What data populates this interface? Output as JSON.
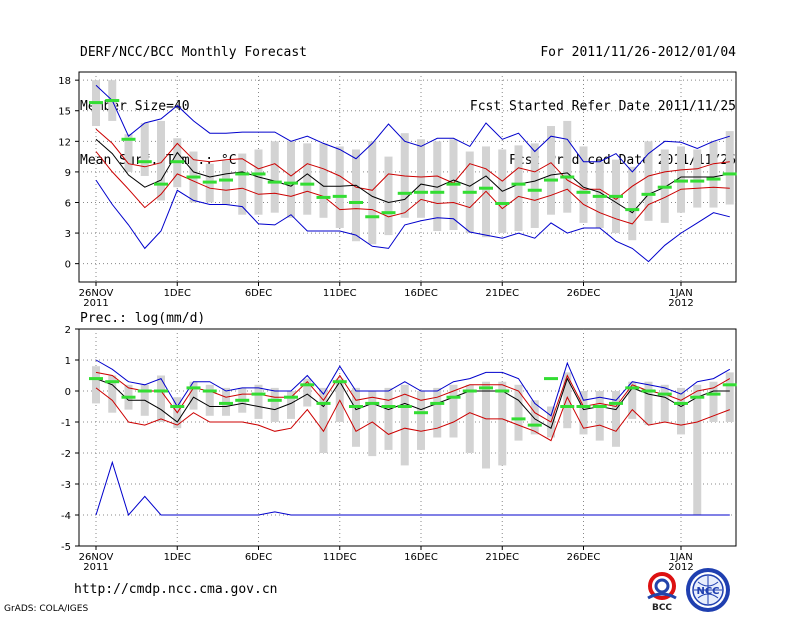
{
  "header": {
    "left": [
      "DERF/NCC/BCC Monthly Forecast",
      "Member Size=40",
      "Mean Surf. Temp.: °C"
    ],
    "right": [
      "For 2011/11/26-2012/01/04",
      "Fcst Started Refer Date 2011/11/25",
      "Fcst Produced Date 2011/11/26"
    ]
  },
  "panel2_title": "Prec.: log(mm/d)",
  "footer": {
    "url": "http://cmdp.ncc.cma.gov.cn",
    "credit": "GrADS: COLA/IGES"
  },
  "logos": [
    {
      "name": "bcc-logo",
      "text": "BCC"
    },
    {
      "name": "ncc-logo",
      "text": "NCC"
    }
  ],
  "colors": {
    "envelope": "#0000cc",
    "spread": "#cc0000",
    "mean": "#000000",
    "obs": "#33dd33",
    "bar": "#d3d3d3"
  },
  "x_ticks": [
    {
      "day": 0,
      "label": "26NOV",
      "sub": "2011"
    },
    {
      "day": 5,
      "label": "1DEC",
      "sub": ""
    },
    {
      "day": 10,
      "label": "6DEC",
      "sub": ""
    },
    {
      "day": 15,
      "label": "11DEC",
      "sub": ""
    },
    {
      "day": 20,
      "label": "16DEC",
      "sub": ""
    },
    {
      "day": 25,
      "label": "21DEC",
      "sub": ""
    },
    {
      "day": 30,
      "label": "26DEC",
      "sub": ""
    },
    {
      "day": 36,
      "label": "1JAN",
      "sub": "2012"
    }
  ],
  "chart_data": [
    {
      "type": "line",
      "title": "Mean Surf. Temp.: °C",
      "x_days": [
        0,
        1,
        2,
        3,
        4,
        5,
        6,
        7,
        8,
        9,
        10,
        11,
        12,
        13,
        14,
        15,
        16,
        17,
        18,
        19,
        20,
        21,
        22,
        23,
        24,
        25,
        26,
        27,
        28,
        29,
        30,
        31,
        32,
        33,
        34,
        35,
        36,
        37,
        38,
        39
      ],
      "ylim": [
        -1.8,
        18.8
      ],
      "yticks": [
        0,
        3,
        6,
        9,
        12,
        15,
        18
      ],
      "series": [
        {
          "name": "max",
          "color": "#0000cc",
          "values": [
            17.5,
            16.0,
            12.5,
            13.8,
            14.2,
            15.5,
            14.0,
            12.8,
            12.8,
            12.9,
            12.9,
            12.9,
            12.0,
            12.5,
            11.8,
            11.2,
            10.3,
            11.8,
            13.7,
            12.0,
            11.5,
            12.3,
            12.3,
            11.5,
            13.8,
            12.2,
            12.8,
            11.0,
            12.5,
            12.2,
            10.0,
            10.0,
            10.8,
            9.0,
            10.8,
            12.0,
            11.9,
            11.3,
            12.0,
            12.5
          ]
        },
        {
          "name": "upper",
          "color": "#cc0000",
          "values": [
            13.2,
            11.8,
            9.8,
            9.5,
            9.9,
            11.8,
            10.2,
            10.0,
            10.2,
            10.3,
            9.3,
            9.8,
            8.6,
            9.8,
            9.3,
            8.6,
            7.5,
            7.2,
            8.8,
            8.6,
            8.5,
            8.6,
            7.9,
            9.8,
            9.3,
            8.1,
            9.4,
            9.0,
            9.9,
            8.2,
            7.3,
            7.3,
            6.3,
            7.6,
            8.6,
            9.0,
            9.2,
            9.3,
            9.8,
            10.0
          ]
        },
        {
          "name": "mean",
          "color": "#000000",
          "values": [
            12.2,
            10.8,
            8.7,
            7.5,
            8.2,
            10.9,
            9.0,
            8.5,
            8.8,
            9.0,
            8.5,
            8.1,
            7.6,
            8.8,
            7.6,
            7.6,
            7.7,
            6.6,
            6.0,
            6.3,
            7.8,
            7.5,
            8.2,
            7.6,
            8.6,
            7.1,
            7.8,
            8.1,
            8.7,
            8.9,
            7.5,
            7.0,
            6.0,
            5.0,
            6.8,
            7.5,
            8.5,
            8.5,
            8.5,
            8.8
          ]
        },
        {
          "name": "lower",
          "color": "#cc0000",
          "values": [
            11.0,
            9.0,
            7.3,
            5.5,
            6.8,
            8.8,
            8.1,
            7.4,
            7.2,
            7.4,
            6.8,
            6.9,
            6.6,
            7.1,
            6.6,
            5.3,
            5.4,
            5.3,
            4.6,
            5.0,
            6.3,
            5.9,
            6.0,
            5.5,
            7.1,
            5.4,
            6.6,
            6.2,
            6.7,
            7.3,
            5.8,
            5.0,
            4.4,
            3.9,
            5.8,
            6.5,
            7.3,
            7.4,
            7.5,
            7.4
          ]
        },
        {
          "name": "min",
          "color": "#0000cc",
          "values": [
            8.2,
            5.8,
            3.8,
            1.5,
            3.2,
            7.2,
            6.2,
            5.8,
            5.8,
            5.6,
            3.9,
            3.8,
            4.8,
            3.2,
            3.2,
            3.2,
            2.8,
            1.7,
            1.5,
            3.8,
            4.2,
            4.5,
            4.4,
            3.1,
            2.8,
            2.5,
            3.0,
            2.5,
            4.0,
            3.0,
            3.5,
            3.5,
            2.2,
            1.5,
            0.2,
            1.8,
            3.0,
            4.0,
            5.0,
            4.6
          ]
        },
        {
          "name": "obs",
          "color": "#33dd33",
          "values": [
            15.8,
            16.0,
            12.2,
            10.0,
            7.8,
            10.0,
            8.5,
            8.0,
            8.2,
            8.8,
            8.8,
            8.0,
            7.9,
            7.8,
            6.5,
            6.6,
            6.0,
            4.6,
            5.0,
            6.9,
            7.0,
            7.0,
            7.8,
            7.0,
            7.4,
            5.9,
            7.8,
            7.2,
            8.2,
            8.5,
            7.0,
            6.6,
            6.6,
            5.3,
            6.8,
            7.5,
            8.1,
            8.1,
            8.3,
            8.8
          ]
        },
        {
          "name": "bar_top",
          "color": "#d3d3d3",
          "values": [
            18.0,
            18.0,
            12.7,
            13.8,
            14.0,
            12.3,
            11.0,
            9.8,
            10.1,
            10.8,
            11.2,
            12.0,
            12.0,
            11.8,
            11.8,
            11.5,
            11.2,
            12.0,
            10.5,
            12.8,
            12.2,
            12.0,
            12.2,
            11.0,
            11.5,
            11.2,
            11.6,
            11.8,
            13.5,
            14.0,
            11.5,
            10.0,
            10.2,
            9.5,
            12.0,
            11.2,
            11.5,
            11.2,
            12.0,
            13.0
          ]
        },
        {
          "name": "bar_bottom",
          "color": "#d3d3d3",
          "values": [
            13.5,
            14.0,
            9.0,
            8.6,
            6.2,
            7.5,
            6.0,
            6.0,
            5.8,
            4.8,
            4.8,
            5.0,
            4.5,
            4.8,
            4.5,
            3.5,
            2.2,
            1.9,
            2.8,
            4.5,
            4.5,
            3.2,
            3.3,
            3.0,
            2.6,
            3.0,
            3.2,
            3.5,
            4.8,
            5.0,
            4.0,
            3.5,
            3.0,
            2.3,
            4.2,
            4.0,
            5.0,
            5.5,
            5.5,
            5.8
          ]
        }
      ]
    },
    {
      "type": "line",
      "title": "Prec.: log(mm/d)",
      "x_days": [
        0,
        1,
        2,
        3,
        4,
        5,
        6,
        7,
        8,
        9,
        10,
        11,
        12,
        13,
        14,
        15,
        16,
        17,
        18,
        19,
        20,
        21,
        22,
        23,
        24,
        25,
        26,
        27,
        28,
        29,
        30,
        31,
        32,
        33,
        34,
        35,
        36,
        37,
        38,
        39
      ],
      "ylim": [
        -5,
        2
      ],
      "yticks": [
        -5,
        -4,
        -3,
        -2,
        -1,
        0,
        1,
        2
      ],
      "series": [
        {
          "name": "max",
          "color": "#0000cc",
          "values": [
            1.0,
            0.7,
            0.3,
            0.2,
            0.4,
            -0.5,
            0.3,
            0.3,
            0.0,
            0.1,
            0.1,
            0.0,
            0.0,
            0.5,
            -0.1,
            0.8,
            0.0,
            0.0,
            0.0,
            0.3,
            0.0,
            0.0,
            0.3,
            0.4,
            0.6,
            0.6,
            0.4,
            -0.4,
            -0.8,
            0.9,
            -0.3,
            -0.2,
            -0.3,
            0.3,
            0.2,
            0.1,
            -0.1,
            0.3,
            0.4,
            0.7
          ]
        },
        {
          "name": "upper",
          "color": "#cc0000",
          "values": [
            0.6,
            0.5,
            0.1,
            0.0,
            0.0,
            -0.7,
            0.1,
            0.0,
            -0.2,
            -0.1,
            -0.1,
            -0.2,
            -0.2,
            0.3,
            -0.3,
            0.5,
            -0.3,
            -0.2,
            -0.3,
            -0.1,
            -0.3,
            -0.2,
            0.0,
            0.2,
            0.2,
            0.2,
            0.0,
            -0.7,
            -1.0,
            0.5,
            -0.5,
            -0.4,
            -0.5,
            0.2,
            0.0,
            -0.1,
            -0.3,
            0.0,
            0.1,
            0.4
          ]
        },
        {
          "name": "mean",
          "color": "#000000",
          "values": [
            0.4,
            0.2,
            -0.3,
            -0.3,
            -0.6,
            -1.0,
            -0.2,
            -0.5,
            -0.5,
            -0.4,
            -0.5,
            -0.6,
            -0.4,
            -0.1,
            -0.5,
            0.3,
            -0.6,
            -0.4,
            -0.6,
            -0.4,
            -0.6,
            -0.4,
            -0.2,
            0.0,
            0.0,
            0.0,
            -0.3,
            -0.9,
            -1.2,
            0.4,
            -0.6,
            -0.5,
            -0.6,
            0.1,
            -0.1,
            -0.2,
            -0.5,
            -0.2,
            0.0,
            0.0
          ]
        },
        {
          "name": "lower",
          "color": "#cc0000",
          "values": [
            0.1,
            -0.3,
            -1.0,
            -1.1,
            -0.9,
            -1.1,
            -0.7,
            -1.0,
            -1.0,
            -1.0,
            -1.1,
            -1.3,
            -1.2,
            -0.6,
            -1.3,
            -0.3,
            -1.3,
            -1.0,
            -1.4,
            -1.2,
            -1.3,
            -1.2,
            -1.0,
            -0.7,
            -0.9,
            -0.9,
            -1.1,
            -1.3,
            -1.6,
            -0.2,
            -1.2,
            -1.1,
            -1.3,
            -0.6,
            -1.1,
            -1.0,
            -1.1,
            -1.0,
            -0.8,
            -0.6
          ]
        },
        {
          "name": "min",
          "color": "#0000cc",
          "values": [
            -4.0,
            -2.3,
            -4.0,
            -3.4,
            -4.0,
            -4.0,
            -4.0,
            -4.0,
            -4.0,
            -4.0,
            -4.0,
            -3.9,
            -4.0,
            -4.0,
            -4.0,
            -4.0,
            -4.0,
            -4.0,
            -4.0,
            -4.0,
            -4.0,
            -4.0,
            -4.0,
            -4.0,
            -4.0,
            -4.0,
            -4.0,
            -4.0,
            -4.0,
            -4.0,
            -4.0,
            -4.0,
            -4.0,
            -4.0,
            -4.0,
            -4.0,
            -4.0,
            -4.0,
            -4.0,
            -4.0
          ]
        },
        {
          "name": "obs",
          "color": "#33dd33",
          "values": [
            0.4,
            0.3,
            -0.2,
            0.0,
            0.0,
            -0.5,
            0.1,
            0.0,
            -0.4,
            -0.3,
            -0.1,
            -0.3,
            -0.2,
            0.2,
            -0.4,
            0.3,
            -0.5,
            -0.4,
            -0.5,
            -0.5,
            -0.7,
            -0.4,
            -0.2,
            0.0,
            0.1,
            0.0,
            -0.9,
            -1.1,
            0.4,
            -0.5,
            -0.5,
            -0.5,
            -0.4,
            0.1,
            0.0,
            -0.1,
            -0.4,
            -0.2,
            -0.1,
            0.2
          ]
        },
        {
          "name": "bar_top",
          "color": "#d3d3d3",
          "values": [
            0.8,
            0.5,
            0.2,
            0.2,
            0.5,
            -0.2,
            0.3,
            0.2,
            0.1,
            0.1,
            0.2,
            0.1,
            0.0,
            0.4,
            0.1,
            0.4,
            0.1,
            0.0,
            0.1,
            0.2,
            0.0,
            0.1,
            0.2,
            0.2,
            0.3,
            0.3,
            0.2,
            -0.3,
            -0.5,
            0.6,
            0.0,
            0.0,
            0.0,
            0.3,
            0.3,
            0.2,
            0.1,
            0.2,
            0.3,
            0.6
          ]
        },
        {
          "name": "bar_bottom",
          "color": "#d3d3d3",
          "values": [
            -0.4,
            -0.7,
            -0.6,
            -0.8,
            -1.0,
            -1.2,
            -0.6,
            -0.8,
            -0.8,
            -0.7,
            -0.9,
            -1.0,
            -0.9,
            -0.5,
            -2.0,
            -1.0,
            -1.8,
            -2.1,
            -1.9,
            -2.4,
            -1.9,
            -1.5,
            -1.5,
            -2.0,
            -2.5,
            -2.4,
            -1.6,
            -1.4,
            -1.5,
            -1.2,
            -1.4,
            -1.6,
            -1.8,
            -0.9,
            -1.1,
            -1.0,
            -1.4,
            -4.0,
            -1.0,
            -1.0
          ]
        }
      ]
    }
  ]
}
